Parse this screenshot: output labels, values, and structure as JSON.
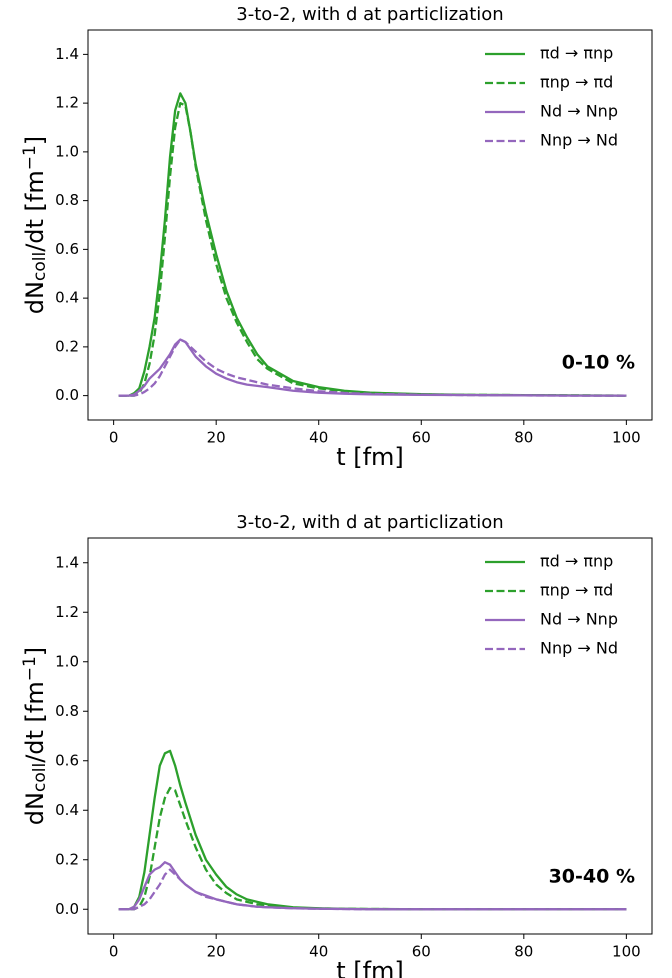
{
  "chart_data": [
    {
      "type": "line",
      "title": "3-to-2, with d at particlization",
      "xlabel": "t [fm]",
      "ylabel": [
        "dN",
        "coll",
        "/dt [fm",
        "−1",
        "]"
      ],
      "annotation": "0-10 %",
      "xlim": [
        -5,
        105
      ],
      "ylim": [
        -0.1,
        1.5
      ],
      "xticks": [
        0,
        20,
        40,
        60,
        80,
        100
      ],
      "yticks": [
        {
          "value": 0,
          "label": "0.0"
        },
        0.2,
        0.4,
        0.6,
        0.8,
        {
          "value": 1,
          "label": "1.0"
        },
        1.2,
        1.4
      ],
      "legend": "upper right",
      "x": [
        1,
        3,
        4,
        5,
        6,
        7,
        8,
        9,
        10,
        11,
        12,
        13,
        14,
        15,
        16,
        18,
        20,
        22,
        24,
        26,
        28,
        30,
        35,
        40,
        45,
        50,
        60,
        70,
        80,
        90,
        100
      ],
      "series": [
        {
          "name": "πd → πnp",
          "color": "#2ca02c",
          "linestyle": "solid",
          "values": [
            0,
            0,
            0.01,
            0.03,
            0.1,
            0.2,
            0.32,
            0.5,
            0.72,
            0.98,
            1.17,
            1.24,
            1.2,
            1.08,
            0.95,
            0.75,
            0.58,
            0.43,
            0.32,
            0.24,
            0.17,
            0.12,
            0.06,
            0.035,
            0.02,
            0.012,
            0.006,
            0.003,
            0.002,
            0.001,
            0
          ]
        },
        {
          "name": "πnp → πd",
          "color": "#2ca02c",
          "linestyle": "dashed",
          "values": [
            0,
            0,
            0,
            0.01,
            0.05,
            0.13,
            0.25,
            0.42,
            0.65,
            0.9,
            1.1,
            1.2,
            1.19,
            1.08,
            0.94,
            0.72,
            0.54,
            0.4,
            0.3,
            0.22,
            0.15,
            0.11,
            0.05,
            0.03,
            0.018,
            0.011,
            0.005,
            0.003,
            0.002,
            0.001,
            0
          ]
        },
        {
          "name": "Nd → Nnp",
          "color": "#9467bd",
          "linestyle": "solid",
          "values": [
            0,
            0,
            0.005,
            0.02,
            0.04,
            0.07,
            0.09,
            0.11,
            0.14,
            0.17,
            0.21,
            0.23,
            0.22,
            0.19,
            0.16,
            0.12,
            0.09,
            0.07,
            0.055,
            0.045,
            0.04,
            0.035,
            0.02,
            0.012,
            0.008,
            0.005,
            0.003,
            0.002,
            0.001,
            0,
            0
          ]
        },
        {
          "name": "Nnp → Nd",
          "color": "#9467bd",
          "linestyle": "dashed",
          "values": [
            0,
            0,
            0,
            0.005,
            0.015,
            0.03,
            0.05,
            0.08,
            0.12,
            0.16,
            0.2,
            0.23,
            0.22,
            0.2,
            0.18,
            0.14,
            0.11,
            0.09,
            0.075,
            0.065,
            0.055,
            0.045,
            0.03,
            0.018,
            0.011,
            0.007,
            0.004,
            0.002,
            0.001,
            0,
            0
          ]
        }
      ]
    },
    {
      "type": "line",
      "title": "3-to-2, with d at particlization",
      "xlabel": "t [fm]",
      "ylabel": [
        "dN",
        "coll",
        "/dt [fm",
        "−1",
        "]"
      ],
      "annotation": "30-40 %",
      "xlim": [
        -5,
        105
      ],
      "ylim": [
        -0.1,
        1.5
      ],
      "xticks": [
        0,
        20,
        40,
        60,
        80,
        100
      ],
      "yticks": [
        {
          "value": 0,
          "label": "0.0"
        },
        0.2,
        0.4,
        0.6,
        0.8,
        {
          "value": 1,
          "label": "1.0"
        },
        1.2,
        1.4
      ],
      "legend": "upper right",
      "x": [
        1,
        3,
        4,
        5,
        6,
        7,
        8,
        9,
        10,
        11,
        12,
        13,
        14,
        16,
        18,
        20,
        22,
        24,
        26,
        28,
        30,
        35,
        40,
        45,
        50,
        60,
        70,
        80,
        90,
        100
      ],
      "series": [
        {
          "name": "πd → πnp",
          "color": "#2ca02c",
          "linestyle": "solid",
          "values": [
            0,
            0,
            0.01,
            0.05,
            0.15,
            0.3,
            0.45,
            0.58,
            0.63,
            0.64,
            0.58,
            0.5,
            0.43,
            0.3,
            0.2,
            0.14,
            0.09,
            0.06,
            0.04,
            0.03,
            0.02,
            0.008,
            0.004,
            0.002,
            0.001,
            0,
            0,
            0,
            0,
            0
          ]
        },
        {
          "name": "πnp → πd",
          "color": "#2ca02c",
          "linestyle": "dashed",
          "values": [
            0,
            0,
            0,
            0.01,
            0.05,
            0.13,
            0.25,
            0.37,
            0.45,
            0.49,
            0.48,
            0.42,
            0.36,
            0.25,
            0.16,
            0.1,
            0.065,
            0.04,
            0.03,
            0.02,
            0.015,
            0.006,
            0.003,
            0.002,
            0.001,
            0,
            0,
            0,
            0,
            0
          ]
        },
        {
          "name": "Nd → Nnp",
          "color": "#9467bd",
          "linestyle": "solid",
          "values": [
            0,
            0,
            0.01,
            0.04,
            0.09,
            0.14,
            0.16,
            0.17,
            0.19,
            0.18,
            0.15,
            0.12,
            0.1,
            0.07,
            0.055,
            0.04,
            0.03,
            0.02,
            0.015,
            0.01,
            0.008,
            0.004,
            0.002,
            0.001,
            0,
            0,
            0,
            0,
            0,
            0
          ]
        },
        {
          "name": "Nnp → Nd",
          "color": "#9467bd",
          "linestyle": "dashed",
          "values": [
            0,
            0,
            0,
            0.01,
            0.02,
            0.04,
            0.07,
            0.1,
            0.14,
            0.16,
            0.14,
            0.12,
            0.1,
            0.07,
            0.05,
            0.04,
            0.03,
            0.02,
            0.015,
            0.01,
            0.008,
            0.004,
            0.002,
            0.001,
            0,
            0,
            0,
            0,
            0,
            0
          ]
        }
      ]
    }
  ]
}
